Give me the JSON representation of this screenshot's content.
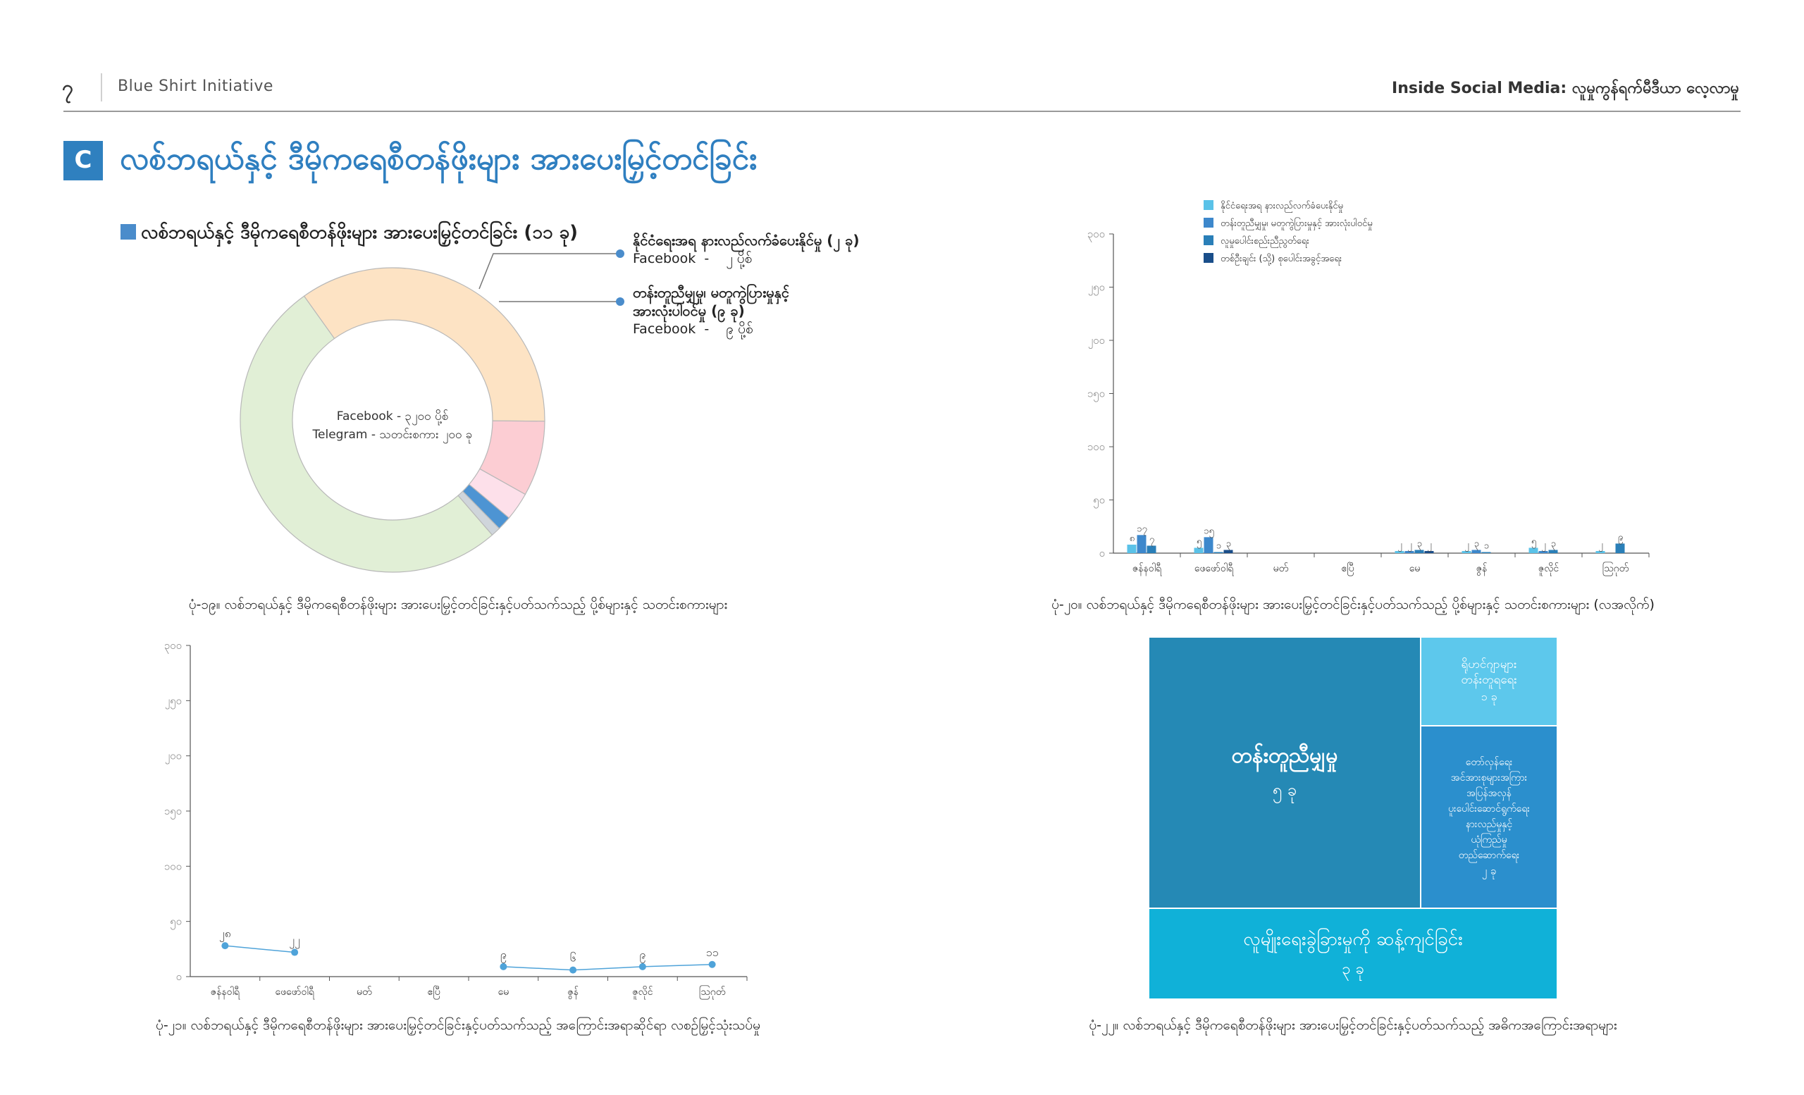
{
  "header": {
    "page_number": "၇",
    "org": "Blue Shirt Initiative",
    "report_title": "Inside Social Media: လူမှုကွန်ရက်မီဒီယာ လေ့လာမှု"
  },
  "section": {
    "badge": "C",
    "title": "လစ်ဘရယ်နှင့် ဒီမိုကရေစီတန်ဖိုးများ အားပေးမြှင့်တင်ခြင်း"
  },
  "colors": {
    "accent": "#2f7fc0",
    "badge": "#2f80bf",
    "donut": [
      "#fde3c4",
      "#fccdd3",
      "#fde0ea",
      "#4d94d3",
      "#cfd5db",
      "#e1efd6"
    ],
    "bar_series": [
      "#5ac2e8",
      "#3d88cc",
      "#2a7fb8",
      "#1a4e8a"
    ],
    "line": "#4fa3d9",
    "treemap": [
      "#2589b5",
      "#5dc8ec",
      "#2b8fcd",
      "#10b1d8"
    ]
  },
  "donut": {
    "title": "လစ်ဘရယ်နှင့် ဒီမိုကရေစီတန်ဖိုးများ အားပေးမြှင့်တင်ခြင်း (၁၁ ခု)",
    "center_line1": "Facebook - ၃၂၀၀ ပို့စ်",
    "center_line2": "Telegram - သတင်းစကား ၂၀၀ ခု",
    "callouts": [
      {
        "title": "နိုင်ငံရေးအရ နားလည်လက်ခံပေးနိုင်မှု (၂ ခု)",
        "platform": "Facebook",
        "dash": "-",
        "value": "၂ ပို့စ်"
      },
      {
        "title": "တန်းတူညီမျှမှု၊ မတူကွဲပြားမှုနှင့်",
        "title2": "အားလုံးပါဝင်မှု (၉ ခု)",
        "platform": "Facebook",
        "dash": "-",
        "value": "၉ ပို့စ်"
      }
    ],
    "caption": "ပုံ-၁၉။ လစ်ဘရယ်နှင့် ဒီမိုကရေစီတန်ဖိုးများ အားပေးမြှင့်တင်ခြင်းနှင့်ပတ်သက်သည့် ပို့စ်များနှင့် သတင်းစကားများ"
  },
  "chart_data": [
    {
      "type": "pie",
      "values": [
        35,
        8,
        3,
        1.5,
        1,
        51.5
      ],
      "center": [
        "Facebook - ၃၂၀၀ ပို့စ်",
        "Telegram - သတင်းစကား ၂၀၀ ခု"
      ]
    },
    {
      "type": "bar",
      "categories": [
        "ဇန်နဝါရီ",
        "ဖေဖော်ဝါရီ",
        "မတ်",
        "ဧပြီ",
        "မေ",
        "ဇွန်",
        "ဇူလိုင်",
        "ဩဂုတ်"
      ],
      "series": [
        {
          "name": "နိုင်ငံရေးအရ နားလည်လက်ခံပေးနိုင်မှု",
          "values": [
            8,
            5,
            0,
            0,
            2,
            2,
            5,
            2
          ],
          "labels": [
            "၈",
            "၅",
            "",
            "",
            "၂",
            "၂",
            "၅",
            "၂"
          ]
        },
        {
          "name": "တန်းတူညီမျှမှု၊ မတူကွဲပြားမှုနှင့် အားလုံးပါဝင်မှု",
          "values": [
            17,
            15,
            0,
            0,
            2,
            3,
            2,
            0
          ],
          "labels": [
            "၁၇",
            "၁၅",
            "",
            "",
            "၂",
            "၃",
            "၂",
            ""
          ]
        },
        {
          "name": "လူမှုပေါင်းစည်းညီညွတ်ရေး",
          "values": [
            7,
            1,
            0,
            0,
            3,
            1,
            3,
            9
          ],
          "labels": [
            "၇",
            "၁",
            "",
            "",
            "၃",
            "၁",
            "၃",
            "၉"
          ]
        },
        {
          "name": "တစ်ဦးချင်း (သို့) စုပေါင်းအခွင့်အရေး",
          "values": [
            0,
            3,
            0,
            0,
            2,
            0,
            0,
            0
          ],
          "labels": [
            "",
            "၃",
            "",
            "",
            "၂",
            "",
            "",
            ""
          ]
        }
      ],
      "yticks": [
        "၀",
        "၅၀",
        "၁၀၀",
        "၁၅၀",
        "၂၀၀",
        "၂၅၀",
        "၃၀၀"
      ],
      "ylim": [
        0,
        300
      ],
      "legend": "top",
      "caption": "ပုံ-၂၀။ လစ်ဘရယ်နှင့် ဒီမိုကရေစီတန်ဖိုးများ အားပေးမြှင့်တင်ခြင်းနှင့်ပတ်သက်သည့် ပို့စ်များနှင့် သတင်းစကားများ (လအလိုက်)"
    },
    {
      "type": "line",
      "categories": [
        "ဇန်နဝါရီ",
        "ဖေဖော်ဝါရီ",
        "မတ်",
        "ဧပြီ",
        "မေ",
        "ဇွန်",
        "ဇူလိုင်",
        "ဩဂုတ်"
      ],
      "values": [
        28,
        22,
        null,
        null,
        9,
        6,
        9,
        11
      ],
      "labels": [
        "၂၈",
        "၂၂",
        "",
        "",
        "၉",
        "၆",
        "၉",
        "၁၁"
      ],
      "yticks": [
        "၀",
        "၅၀",
        "၁၀၀",
        "၁၅၀",
        "၂၀၀",
        "၂၅၀",
        "၃၀၀"
      ],
      "ylim": [
        0,
        300
      ],
      "caption": "ပုံ-၂၁။ လစ်ဘရယ်နှင့် ဒီမိုကရေစီတန်ဖိုးများ အားပေးမြှင့်တင်ခြင်းနှင့်ပတ်သက်သည့် အကြောင်းအရာဆိုင်ရာ လစဉ်မြှင့်သုံးသပ်မှု"
    },
    {
      "type": "treemap",
      "cells": [
        {
          "label": "တန်းတူညီမျှမှု",
          "value": "၅ ခု"
        },
        {
          "label": "ရိုဟင်ဂျာများ တန်းတူရရေး",
          "value": "၁ ခု"
        },
        {
          "label": "တော်လှန်ရေး အင်အားစုများအကြား အပြန်အလှန် ပူးပေါင်းဆောင်ရွက်ရေး နားလည်မှုနှင့် ယုံကြည်မှု တည်ဆောက်ရေး",
          "value": "၂ ခု"
        },
        {
          "label": "လူမျိုးရေးခွဲခြားမှုကို ဆန့်ကျင်ခြင်း",
          "value": "၃ ခု"
        }
      ],
      "caption": "ပုံ-၂၂။ လစ်ဘရယ်နှင့် ဒီမိုကရေစီတန်ဖိုးများ အားပေးမြှင့်တင်ခြင်းနှင့်ပတ်သက်သည့် အဓိကအကြောင်းအရာများ"
    }
  ],
  "treemap_lines": {
    "rohingya": [
      "ရိုဟင်ဂျာများ",
      "တန်းတူရရေး"
    ],
    "cooperation": [
      "တော်လှန်ရေး",
      "အင်အားစုများအကြား",
      "အပြန်အလှန်",
      "ပူးပေါင်းဆောင်ရွက်ရေး",
      "နားလည်မှုနှင့်",
      "ယုံကြည်မှု",
      "တည်ဆောက်ရေး"
    ]
  }
}
